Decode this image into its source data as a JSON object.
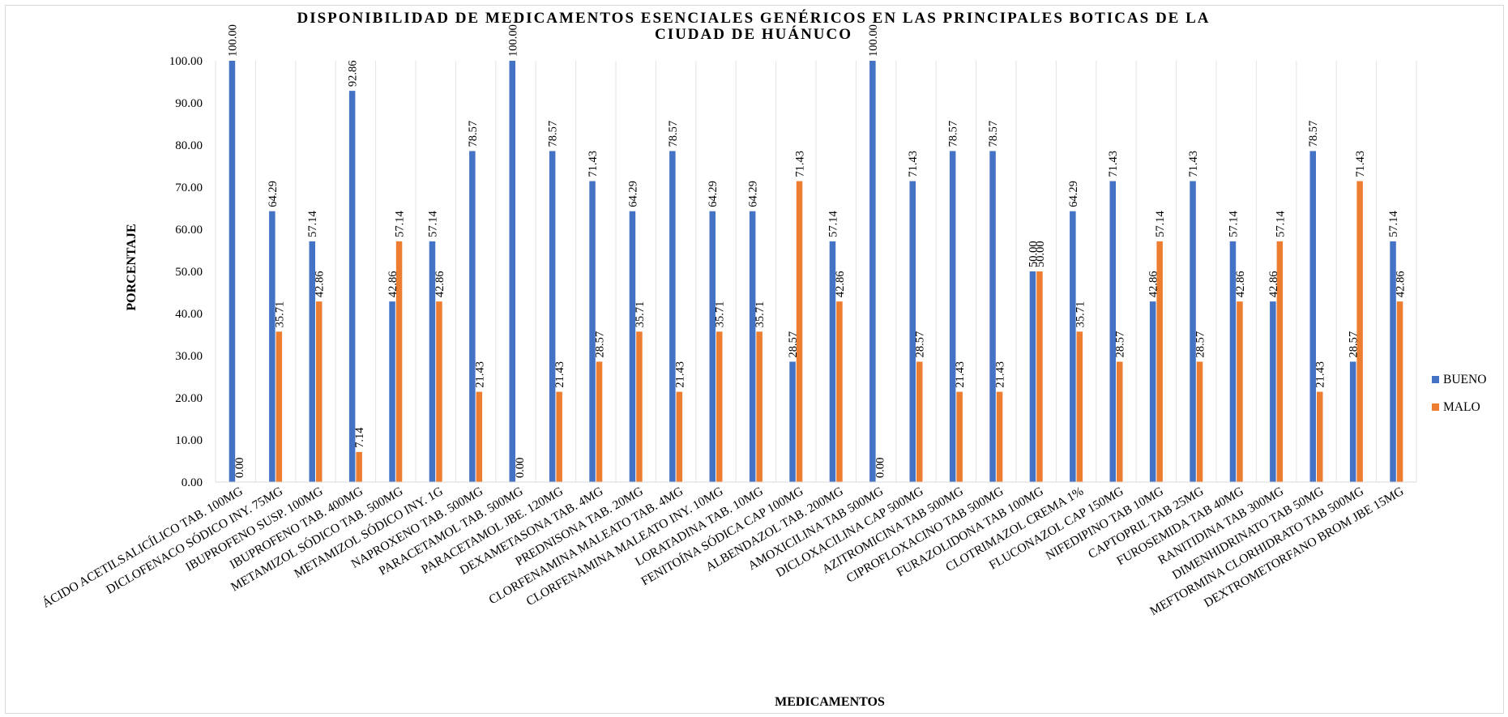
{
  "chart_data": {
    "type": "bar",
    "title_lines": [
      "DISPONIBILIDAD DE MEDICAMENTOS ESENCIALES GENÉRICOS EN LAS PRINCIPALES BOTICAS DE LA",
      "CIUDAD DE HUÁNUCO"
    ],
    "xlabel": "MEDICAMENTOS",
    "ylabel": "PORCENTAJE",
    "ylim": [
      0,
      100
    ],
    "yticks": [
      "0.00",
      "10.00",
      "20.00",
      "30.00",
      "40.00",
      "50.00",
      "60.00",
      "70.00",
      "80.00",
      "90.00",
      "100.00"
    ],
    "grid": "vertical",
    "legend_position": "right",
    "categories": [
      "ÁCIDO ACETILSALICÍLICO TAB. 100MG",
      "DICLOFENACO SÓDICO INY. 75MG",
      "IBUPROFENO SUSP. 100MG",
      "IBUPROFENO TAB. 400MG",
      "METAMIZOL SÓDICO TAB. 500MG",
      "METAMIZOL SÓDICO INY. 1G",
      "NAPROXENO TAB. 500MG",
      "PARACETAMOL TAB. 500MG",
      "PARACETAMOL JBE. 120MG",
      "DEXAMETASONA TAB. 4MG",
      "PREDNISONA TAB. 20MG",
      "CLORFENAMINA MALEATO TAB. 4MG",
      "CLORFENAMINA MALEATO INY. 10MG",
      "LORATADINA TAB. 10MG",
      "FENITOÍNA SÓDICA CAP 100MG",
      "ALBENDAZOL TAB. 200MG",
      "AMOXICILINA TAB 500MG",
      "DICLOXACILINA CAP 500MG",
      "AZITROMICINA TAB 500MG",
      "CIPROFLOXACINO TAB 500MG",
      "FURAZOLIDONA TAB 100MG",
      "CLOTRIMAZOL CREMA 1%",
      "FLUCONAZOL CAP 150MG",
      "NIFEDIPINO TAB 10MG",
      "CAPTOPRIL TAB 25MG",
      "FUROSEMIDA TAB 40MG",
      "RANITIDINA TAB 300MG",
      "DIMENHIDRINATO TAB 50MG",
      "MEFTORMINA CLORHIDRATO TAB 500MG",
      "DEXTROMETORFANO BROM JBE 15MG"
    ],
    "series": [
      {
        "name": "BUENO",
        "color": "#4472C4",
        "values": [
          100.0,
          64.29,
          57.14,
          92.86,
          42.86,
          57.14,
          78.57,
          100.0,
          78.57,
          71.43,
          64.29,
          78.57,
          64.29,
          64.29,
          28.57,
          57.14,
          100.0,
          71.43,
          78.57,
          78.57,
          50.0,
          64.29,
          71.43,
          42.86,
          71.43,
          57.14,
          42.86,
          78.57,
          28.57,
          57.14
        ],
        "labels": [
          "100.00",
          "64.29",
          "57.14",
          "92.86",
          "42.86",
          "57.14",
          "78.57",
          "100.00",
          "78.57",
          "71.43",
          "64.29",
          "78.57",
          "64.29",
          "64.29",
          "28.57",
          "57.14",
          "100.00",
          "71.43",
          "78.57",
          "78.57",
          "50.00",
          "64.29",
          "71.43",
          "42.86",
          "71.43",
          "57.14",
          "42.86",
          "78.57",
          "28.57",
          "57.14"
        ]
      },
      {
        "name": "MALO",
        "color": "#ED7D31",
        "values": [
          0.0,
          35.71,
          42.86,
          7.14,
          57.14,
          42.86,
          21.43,
          0.0,
          21.43,
          28.57,
          35.71,
          21.43,
          35.71,
          35.71,
          71.43,
          42.86,
          0.0,
          28.57,
          21.43,
          21.43,
          50.0,
          35.71,
          28.57,
          57.14,
          28.57,
          42.86,
          57.14,
          21.43,
          71.43,
          42.86
        ],
        "labels": [
          "0.00",
          "35.71",
          "42.86",
          "7.14",
          "57.14",
          "42.86",
          "21.43",
          "0.00",
          "21.43",
          "28.57",
          "35.71",
          "21.43",
          "35.71",
          "35.71",
          "71.43",
          "42.86",
          "0.00",
          "28.57",
          "21.43",
          "21.43",
          "50.00",
          "35.71",
          "28.57",
          "57.14",
          "28.57",
          "42.86",
          "57.14",
          "21.43",
          "71.43",
          "42.86"
        ]
      }
    ]
  }
}
